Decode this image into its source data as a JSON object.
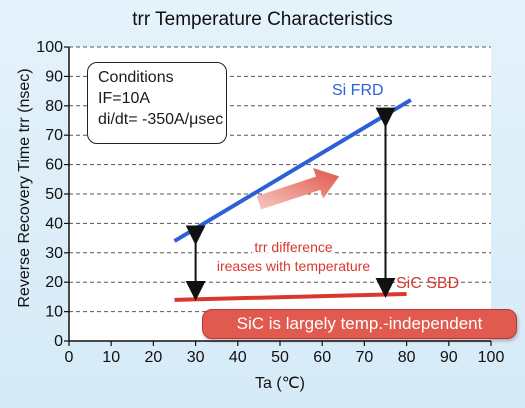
{
  "chart_data": {
    "type": "line",
    "title": "trr  Temperature Characteristics",
    "xlabel": "Ta (℃)",
    "ylabel": "Reverse Recovery Time trr (nsec)",
    "xlim": [
      0,
      100
    ],
    "ylim": [
      0,
      100
    ],
    "x_ticks": [
      "0",
      "10",
      "20",
      "30",
      "40",
      "50",
      "60",
      "70",
      "80",
      "90",
      "100"
    ],
    "y_ticks": [
      "0",
      "10",
      "20",
      "30",
      "40",
      "50",
      "60",
      "70",
      "80",
      "90",
      "100"
    ],
    "grid": "horizontal-dashed",
    "series": [
      {
        "name": "Si FRD",
        "color": "#2d5fd6",
        "x": [
          25,
          81
        ],
        "y": [
          34,
          82
        ]
      },
      {
        "name": "SiC SBD",
        "color": "#d9382f",
        "x": [
          25,
          80
        ],
        "y": [
          14,
          16
        ]
      }
    ],
    "annotations": {
      "difference_line1": "trr difference",
      "difference_line2": "ireases with temperature",
      "banner": "SiC is largely temp.-independent",
      "arrows": [
        {
          "x": 30,
          "y_from": 38,
          "y_to": 15
        },
        {
          "x": 75,
          "y_from": 78,
          "y_to": 16
        }
      ]
    },
    "conditions": {
      "heading": "Conditions",
      "line1": "IF=10A",
      "line2": "di/dt= -350A/μsec"
    }
  }
}
